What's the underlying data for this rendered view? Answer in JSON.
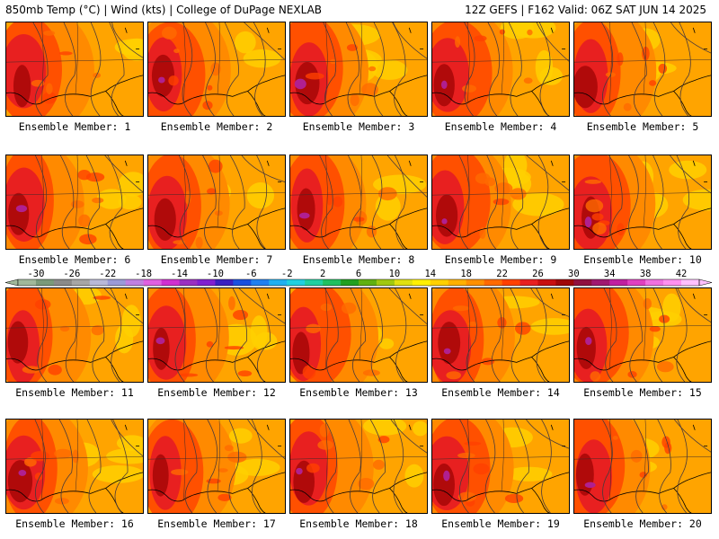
{
  "header": {
    "left_title": "850mb Temp (°C) | Wind (kts) | College of DuPage NEXLAB",
    "right_title": "12Z GEFS | F162 Valid: 06Z SAT JUN 14 2025"
  },
  "member_prefix": "Ensemble Member: ",
  "members": [
    "1",
    "2",
    "3",
    "4",
    "5",
    "6",
    "7",
    "8",
    "9",
    "10",
    "11",
    "12",
    "13",
    "14",
    "15",
    "16",
    "17",
    "18",
    "19",
    "20"
  ],
  "colorbar": {
    "tick_labels": [
      "-30",
      "-26",
      "-22",
      "-18",
      "-14",
      "-10",
      "-6",
      "-2",
      "2",
      "6",
      "10",
      "14",
      "18",
      "22",
      "26",
      "30",
      "34",
      "38",
      "42"
    ],
    "colors": [
      "#a0b89a",
      "#7a9a7a",
      "#8a8a8a",
      "#a6a6a6",
      "#b8b8d8",
      "#9a9ad8",
      "#c080e0",
      "#e060e0",
      "#d030d0",
      "#9a30c0",
      "#8020d0",
      "#3a20c0",
      "#1a50e0",
      "#2080f0",
      "#20b0f0",
      "#20d0e0",
      "#20d0a0",
      "#20c060",
      "#20a020",
      "#60b010",
      "#a0c810",
      "#e0e010",
      "#fff000",
      "#ffd000",
      "#ffb000",
      "#ff9000",
      "#ff6a00",
      "#ff4000",
      "#e82020",
      "#c81010",
      "#a00808",
      "#901040",
      "#a01870",
      "#c020a0",
      "#e040c0",
      "#f070e0",
      "#ff90f0",
      "#ffc0ff"
    ]
  }
}
